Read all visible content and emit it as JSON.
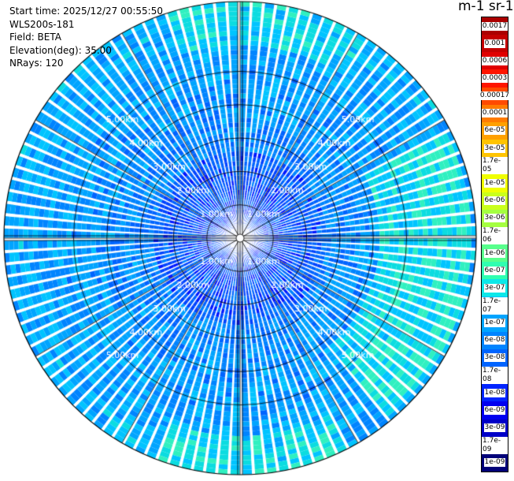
{
  "header": {
    "start_time": "Start time: 2025/12/27 00:55:50",
    "instrument": "WLS200s-181",
    "field": "Field: BETA",
    "elevation": "Elevation(deg): 35.00",
    "nrays": "NRays: 120"
  },
  "units_label": "m-1 sr-1",
  "range_rings": [
    "1.00km",
    "2.00km",
    "3.00km",
    "4.00km",
    "5.00km"
  ],
  "colorbar": {
    "labels": [
      "0.0017",
      "0.001",
      "0.0006",
      "0.0003",
      "0.00017",
      "0.0001",
      "6e-05",
      "3e-05",
      "1.7e-05",
      "1e-05",
      "6e-06",
      "3e-06",
      "1.7e-06",
      "1e-06",
      "6e-07",
      "3e-07",
      "1.7e-07",
      "1e-07",
      "6e-08",
      "3e-08",
      "1.7e-08",
      "1e-08",
      "6e-09",
      "3e-09",
      "1.7e-09",
      "1e-09"
    ],
    "colors": [
      "#ab0000",
      "#c40000",
      "#e00000",
      "#ff1500",
      "#ff4a00",
      "#ff7b00",
      "#ffa000",
      "#ffc400",
      "#ffe800",
      "#f0ff00",
      "#caff1c",
      "#a4ff40",
      "#7eff66",
      "#58ff8c",
      "#30ffb0",
      "#0ce8e8",
      "#00c4ff",
      "#00a4ff",
      "#0084ff",
      "#0064ff",
      "#0044ff",
      "#0024ff",
      "#0000f0",
      "#0000c8",
      "#0000a0",
      "#000078"
    ]
  }
}
